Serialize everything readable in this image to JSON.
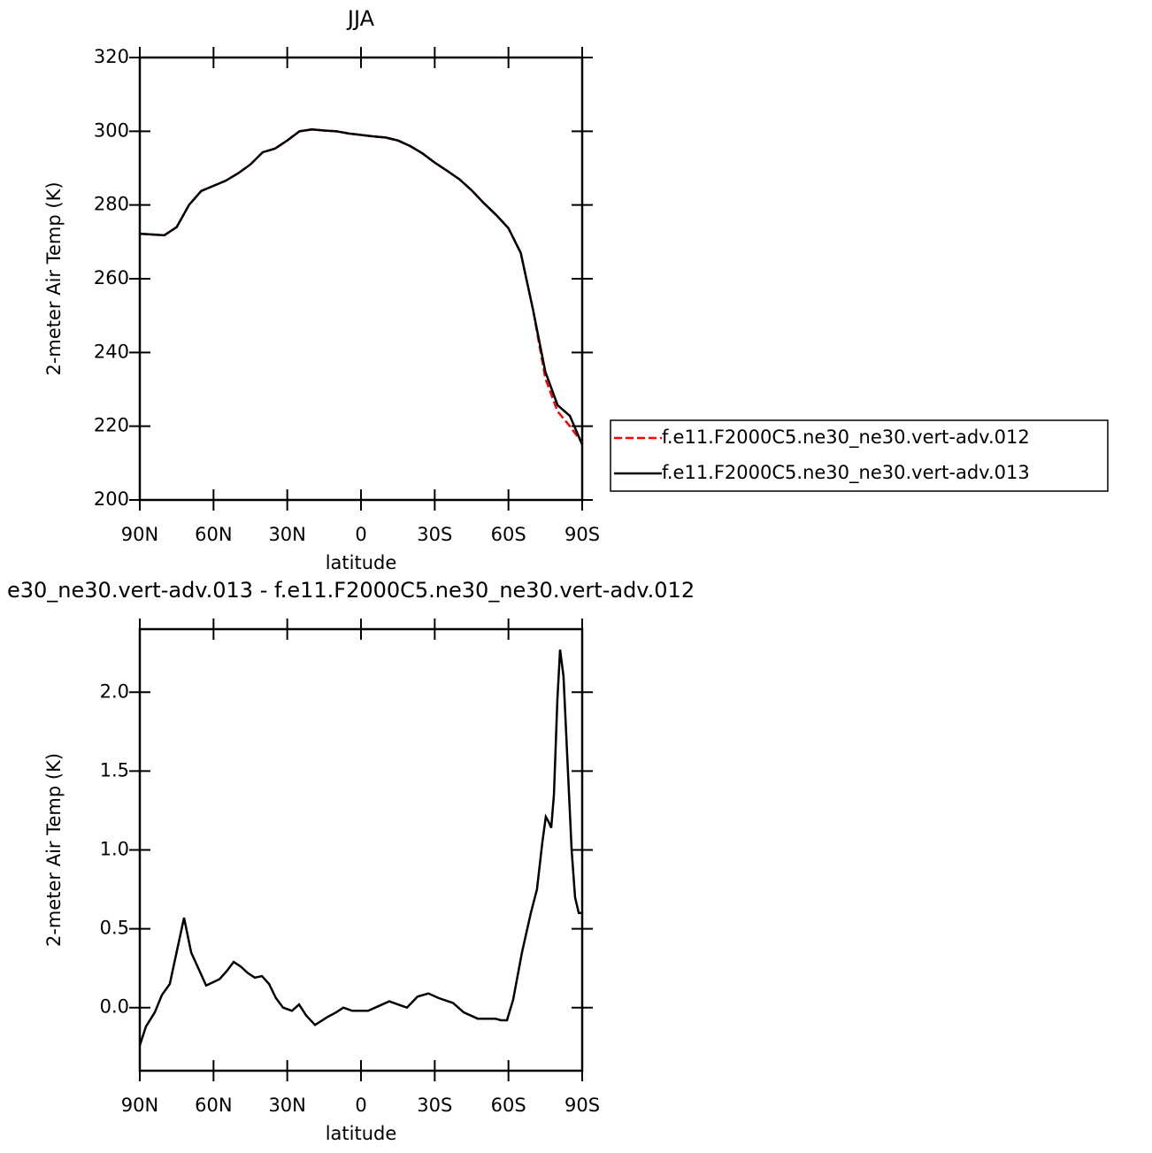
{
  "chart_data": [
    {
      "type": "line",
      "title": "JJA",
      "xlabel": "latitude",
      "ylabel": "2-meter Air Temp (K)",
      "x": [
        90,
        85,
        80,
        75,
        70,
        65,
        60,
        55,
        50,
        45,
        40,
        35,
        30,
        25,
        20,
        15,
        10,
        5,
        0,
        -5,
        -10,
        -15,
        -20,
        -25,
        -30,
        -35,
        -40,
        -45,
        -50,
        -55,
        -60,
        -65,
        -70,
        -75,
        -80,
        -85,
        -90
      ],
      "series": [
        {
          "name": "f.e11.F2000C5.ne30_ne30.vert-adv.012",
          "color": "#ff0000",
          "dashed": true,
          "values": [
            272.2,
            272,
            271.8,
            274,
            280,
            283.8,
            285.2,
            286.6,
            288.6,
            291,
            294.3,
            295.3,
            297.5,
            300,
            300.5,
            300.2,
            300,
            299.4,
            299,
            298.6,
            298.3,
            297.5,
            296,
            294,
            291.5,
            289.3,
            287,
            284,
            280.5,
            277.3,
            273.7,
            267,
            251.6,
            233,
            224,
            220,
            215.5
          ]
        },
        {
          "name": "f.e11.F2000C5.ne30_ne30.vert-adv.013",
          "color": "#000000",
          "dashed": false,
          "values": [
            272.2,
            272,
            271.8,
            274,
            280,
            283.8,
            285.2,
            286.6,
            288.6,
            291,
            294.3,
            295.3,
            297.5,
            300,
            300.5,
            300.2,
            300,
            299.4,
            299,
            298.6,
            298.3,
            297.5,
            296,
            294,
            291.5,
            289.3,
            287,
            284,
            280.5,
            277.3,
            273.7,
            267,
            251.6,
            234.8,
            225.7,
            222.8,
            215
          ]
        }
      ],
      "xlim": [
        90,
        -90
      ],
      "xticks": [
        {
          "value": 90,
          "label": "90N"
        },
        {
          "value": 60,
          "label": "60N"
        },
        {
          "value": 30,
          "label": "30N"
        },
        0,
        {
          "value": -30,
          "label": "30S"
        },
        {
          "value": -60,
          "label": "60S"
        },
        {
          "value": -90,
          "label": "90S"
        }
      ],
      "ylim": [
        200,
        320
      ],
      "yticks": [
        200,
        220,
        240,
        260,
        280,
        300,
        320
      ],
      "legend": "right"
    },
    {
      "type": "line",
      "title": "e30_ne30.vert-adv.013 - f.e11.F2000C5.ne30_ne30.vert-adv.012",
      "xlabel": "latitude",
      "ylabel": "2-meter Air Temp (K)",
      "x": [
        90,
        87.5,
        83.9,
        81,
        77.8,
        74.9,
        72,
        69.1,
        66.2,
        63,
        57.6,
        54.7,
        51.8,
        48.9,
        46.1,
        43.2,
        40.3,
        37.4,
        34.6,
        31.7,
        28.1,
        25.2,
        22.3,
        18.7,
        13.7,
        10.1,
        7.2,
        3.6,
        0.7,
        -2.9,
        -7.2,
        -11.5,
        -15.1,
        -18.7,
        -23,
        -27.4,
        -31.7,
        -37.4,
        -41.8,
        -47.5,
        -54.7,
        -56.9,
        -59.4,
        -61.9,
        -65.5,
        -69.1,
        -71.6,
        -73.8,
        -75.2,
        -76.3,
        -77.4,
        -78.5,
        -79.9,
        -81,
        -82.4,
        -83.9,
        -85.7,
        -87.1,
        -88.6,
        -90
      ],
      "series": [
        {
          "name": null,
          "color": "#000000",
          "dashed": false,
          "values": [
            -0.24,
            -0.12,
            -0.03,
            0.08,
            0.15,
            0.36,
            0.57,
            0.35,
            0.25,
            0.14,
            0.18,
            0.23,
            0.29,
            0.26,
            0.22,
            0.19,
            0.2,
            0.15,
            0.06,
            0.0,
            -0.02,
            0.02,
            -0.05,
            -0.11,
            -0.06,
            -0.03,
            0.0,
            -0.02,
            -0.02,
            -0.02,
            0.01,
            0.04,
            0.02,
            0.0,
            0.07,
            0.09,
            0.06,
            0.03,
            -0.03,
            -0.07,
            -0.07,
            -0.08,
            -0.08,
            0.05,
            0.35,
            0.6,
            0.75,
            1.05,
            1.21,
            1.18,
            1.14,
            1.35,
            1.95,
            2.27,
            2.1,
            1.6,
            1.0,
            0.7,
            0.6,
            0.6
          ]
        }
      ],
      "xlim": [
        90,
        -90
      ],
      "xticks": [
        {
          "value": 90,
          "label": "90N"
        },
        {
          "value": 60,
          "label": "60N"
        },
        {
          "value": 30,
          "label": "30N"
        },
        0,
        {
          "value": -30,
          "label": "30S"
        },
        {
          "value": -60,
          "label": "60S"
        },
        {
          "value": -90,
          "label": "90S"
        }
      ],
      "ylim": [
        -0.4,
        2.4
      ],
      "yticks": [
        {
          "value": 0,
          "label": "0.0"
        },
        0.5,
        {
          "value": 1,
          "label": "1.0"
        },
        1.5,
        {
          "value": 2,
          "label": "2.0"
        }
      ]
    }
  ]
}
